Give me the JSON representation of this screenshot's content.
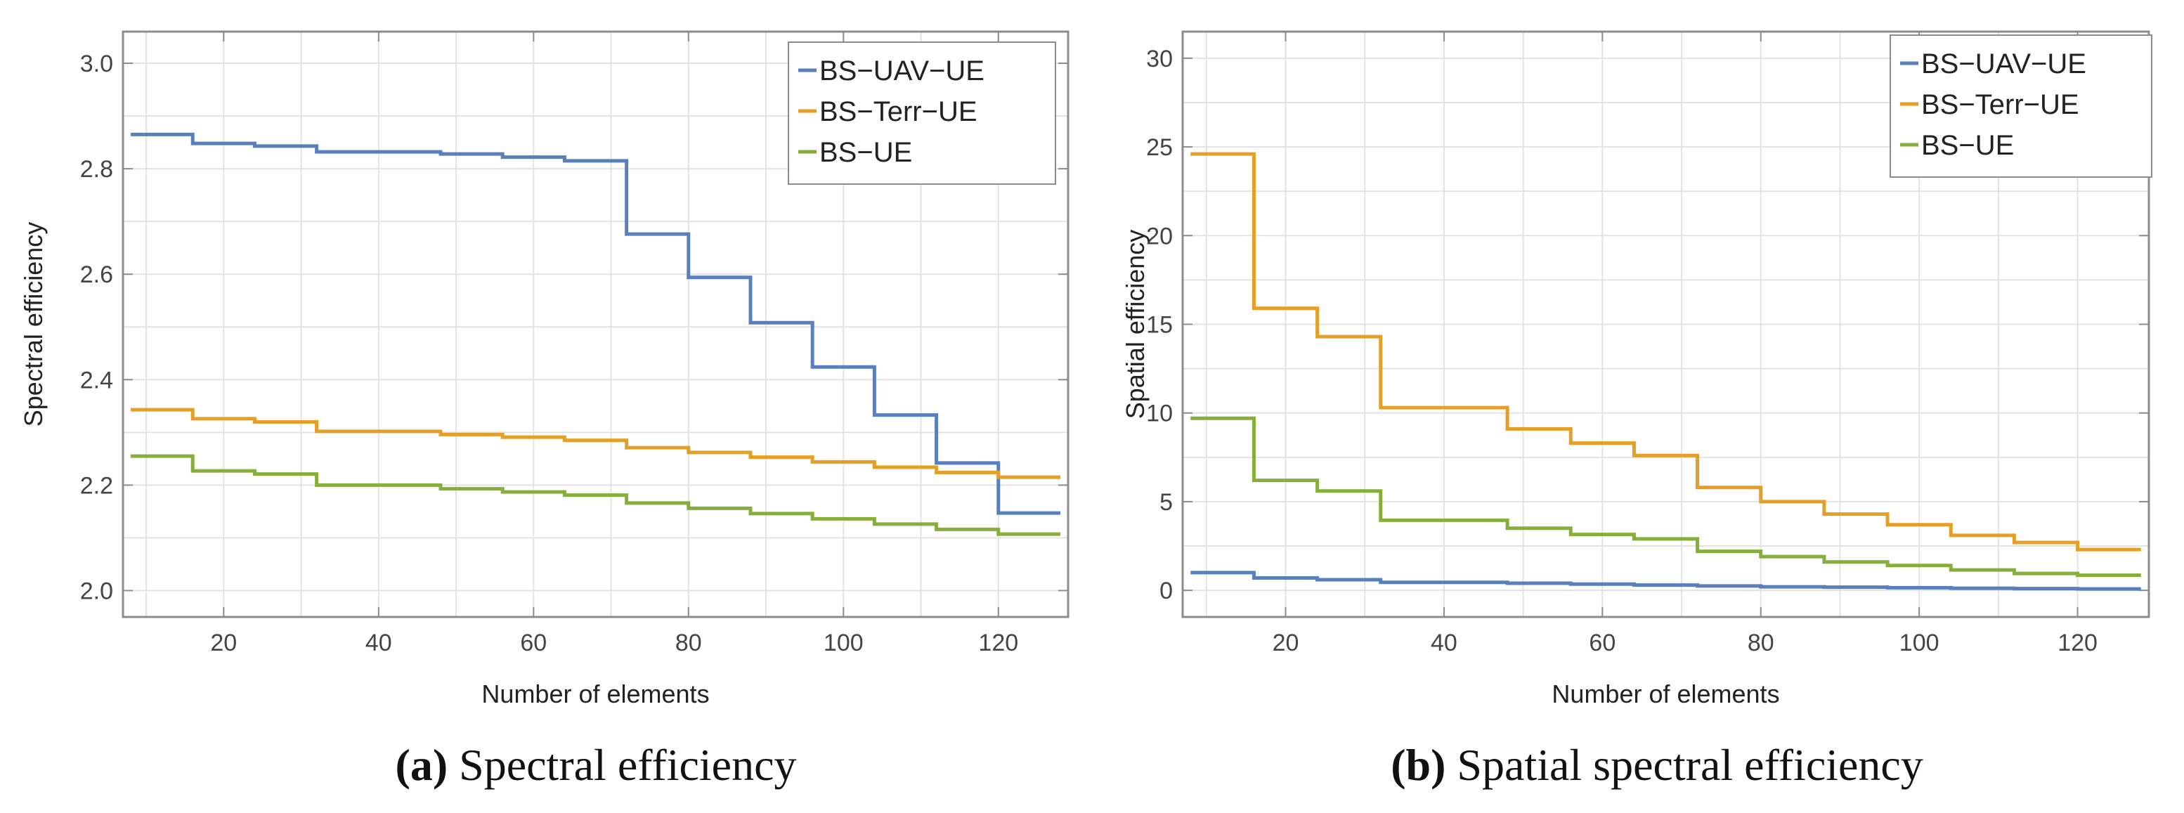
{
  "chart_data": [
    {
      "type": "line",
      "title": "",
      "caption_letter": "(a)",
      "caption": "Spectral efficiency",
      "xlabel": "Number of elements",
      "ylabel": "Spectral efficiency",
      "xlim": [
        7,
        129
      ],
      "ylim": [
        1.95,
        3.06
      ],
      "xticks": [
        20,
        40,
        60,
        80,
        100,
        120
      ],
      "xtick_labels": [
        "20",
        "40",
        "60",
        "80",
        "100",
        "120"
      ],
      "yticks": [
        2.0,
        2.2,
        2.4,
        2.6,
        2.8,
        3.0
      ],
      "ytick_labels": [
        "2.0",
        "2.2",
        "2.4",
        "2.6",
        "2.8",
        "3.0"
      ],
      "grid": true,
      "legend_position": "top-right",
      "x": [
        8,
        16,
        24,
        32,
        40,
        48,
        56,
        64,
        72,
        80,
        88,
        96,
        104,
        112,
        120,
        128
      ],
      "series": [
        {
          "name": "BS−UAV−UE",
          "color": "#5a7fbd",
          "values": [
            2.865,
            2.848,
            2.843,
            2.832,
            2.832,
            2.828,
            2.822,
            2.815,
            2.676,
            2.594,
            2.508,
            2.424,
            2.333,
            2.242,
            2.147,
            2.147
          ]
        },
        {
          "name": "BS−Terr−UE",
          "color": "#e69f26",
          "values": [
            2.343,
            2.326,
            2.32,
            2.302,
            2.302,
            2.296,
            2.291,
            2.285,
            2.271,
            2.262,
            2.253,
            2.244,
            2.234,
            2.224,
            2.215,
            2.215
          ]
        },
        {
          "name": "BS−UE",
          "color": "#86ae3a",
          "values": [
            2.255,
            2.227,
            2.221,
            2.2,
            2.2,
            2.193,
            2.187,
            2.181,
            2.166,
            2.156,
            2.146,
            2.136,
            2.126,
            2.116,
            2.107,
            2.107
          ]
        }
      ]
    },
    {
      "type": "line",
      "title": "",
      "caption_letter": "(b)",
      "caption": "Spatial spectral efficiency",
      "xlabel": "Number of elements",
      "ylabel": "Spatial efficiency",
      "xlim": [
        7,
        129
      ],
      "ylim": [
        -1.5,
        31.5
      ],
      "xticks": [
        20,
        40,
        60,
        80,
        100,
        120
      ],
      "xtick_labels": [
        "20",
        "40",
        "60",
        "80",
        "100",
        "120"
      ],
      "yticks": [
        0,
        5,
        10,
        15,
        20,
        25,
        30
      ],
      "ytick_labels": [
        "0",
        "5",
        "10",
        "15",
        "20",
        "25",
        "30"
      ],
      "grid": true,
      "legend_position": "top-right",
      "x": [
        8,
        16,
        24,
        32,
        40,
        48,
        56,
        64,
        72,
        80,
        88,
        96,
        104,
        112,
        120,
        128
      ],
      "series": [
        {
          "name": "BS−UAV−UE",
          "color": "#5a7fbd",
          "values": [
            1.0,
            0.7,
            0.6,
            0.45,
            0.45,
            0.4,
            0.35,
            0.3,
            0.25,
            0.2,
            0.18,
            0.15,
            0.12,
            0.1,
            0.08,
            0.08
          ]
        },
        {
          "name": "BS−Terr−UE",
          "color": "#e69f26",
          "values": [
            24.6,
            15.9,
            14.3,
            10.3,
            10.3,
            9.1,
            8.3,
            7.6,
            5.8,
            5.0,
            4.3,
            3.7,
            3.1,
            2.7,
            2.3,
            2.3
          ]
        },
        {
          "name": "BS−UE",
          "color": "#86ae3a",
          "values": [
            9.7,
            6.2,
            5.6,
            3.95,
            3.95,
            3.5,
            3.15,
            2.9,
            2.2,
            1.9,
            1.6,
            1.4,
            1.15,
            0.95,
            0.85,
            0.85
          ]
        }
      ]
    }
  ]
}
